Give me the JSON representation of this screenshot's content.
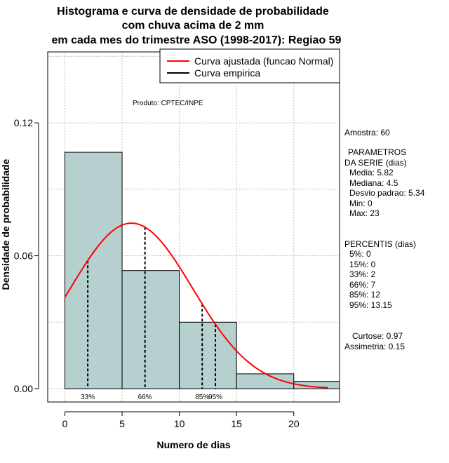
{
  "chart_data": {
    "type": "bar",
    "title_lines": [
      "Histograma e curva de densidade de probabilidade",
      "com chuva acima de 2 mm",
      "em cada mes do trimestre ASO (1998-2017): Regiao 59"
    ],
    "xlabel": "Numero de dias",
    "ylabel": "Densidade de probabilidade",
    "xlim": [
      -1.5,
      24
    ],
    "ylim": [
      -0.006,
      0.152
    ],
    "x_ticks": [
      0,
      5,
      10,
      15,
      20
    ],
    "y_ticks": [
      0.0,
      0.06,
      0.12
    ],
    "y_tick_labels": [
      "0.00",
      "0.06",
      "0.12"
    ],
    "grid": true,
    "bins": [
      {
        "start": 0,
        "end": 5,
        "density": 0.1067
      },
      {
        "start": 5,
        "end": 10,
        "density": 0.0533
      },
      {
        "start": 10,
        "end": 15,
        "density": 0.03
      },
      {
        "start": 15,
        "end": 20,
        "density": 0.0067
      },
      {
        "start": 20,
        "end": 25,
        "density": 0.0033
      }
    ],
    "bar_color": "#b6cfcf",
    "normal_fit": {
      "mean": 5.82,
      "sd": 5.34,
      "x_range": [
        0,
        23
      ],
      "color": "#ff0000"
    },
    "percentile_markers": [
      {
        "label": "33%",
        "x": 2
      },
      {
        "label": "66%",
        "x": 7
      },
      {
        "label": "85%",
        "x": 12
      },
      {
        "label": "95%",
        "x": 13.15
      }
    ],
    "legend": {
      "position": "top-right",
      "entries": [
        {
          "label": "Curva ajustada (funcao Normal)",
          "color": "#ff0000"
        },
        {
          "label": "Curva empirica",
          "color": "#000000"
        }
      ]
    },
    "annotation": "Produto: CPTEC/INPE",
    "side_stats": [
      "Amostra: 60",
      "PARAMETROS",
      "DA SERIE (dias)",
      "Media: 5.82",
      "Mediana: 4.5",
      "Desvio padrao: 5.34",
      "Min: 0",
      "Max: 23",
      "PERCENTIS (dias)",
      "5%: 0",
      "15%: 0",
      "33%: 2",
      "66%: 7",
      "85%: 12",
      "95%: 13.15",
      "Curtose: 0.97",
      "Assimetria: 0.15"
    ]
  }
}
